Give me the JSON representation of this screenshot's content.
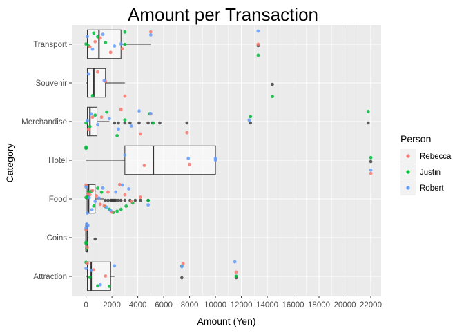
{
  "chart_data": {
    "type": "boxplot-with-jittered-points",
    "title": "Amount per Transaction",
    "xlabel": "Amount (Yen)",
    "ylabel": "Category",
    "xlim": [
      -1100,
      22800
    ],
    "x_ticks": [
      0,
      2000,
      4000,
      6000,
      8000,
      10000,
      12000,
      14000,
      16000,
      18000,
      20000,
      22000
    ],
    "x_tick_labels": [
      "0",
      "2000",
      "4000",
      "6000",
      "8000",
      "10000",
      "12000",
      "14000",
      "16000",
      "18000",
      "20000",
      "22000"
    ],
    "categories": [
      "Attraction",
      "Coins",
      "Food",
      "Hotel",
      "Merchandise",
      "Souvenir",
      "Transport"
    ],
    "legend": {
      "title": "Person",
      "position": "right",
      "entries": [
        {
          "name": "Rebecca",
          "color": "#F8766D"
        },
        {
          "name": "Justin",
          "color": "#00BA38"
        },
        {
          "name": "Robert",
          "color": "#619CFF"
        }
      ]
    },
    "grid": true,
    "colors": {
      "panel": "#EBEBEB",
      "grid": "#FFFFFF",
      "box_fill": "#FFFFFF",
      "outlier": "#333333"
    },
    "boxes": [
      {
        "category": "Attraction",
        "min": 0,
        "q1": 100,
        "median": 400,
        "q3": 1900,
        "max": 2200,
        "outliers": [
          7400,
          11600
        ]
      },
      {
        "category": "Coins",
        "min": 0,
        "q1": 0,
        "median": 0,
        "q3": 100,
        "max": 200,
        "outliers": [
          700
        ]
      },
      {
        "category": "Food",
        "min": 0,
        "q1": 80,
        "median": 200,
        "q3": 700,
        "max": 1400,
        "outliers": [
          1500,
          1700,
          1900,
          2000,
          2100,
          2200,
          2300,
          2500,
          2700,
          3000,
          3400,
          3800,
          4200,
          4800
        ]
      },
      {
        "category": "Hotel",
        "min": 0,
        "q1": 3000,
        "median": 5200,
        "q3": 10000,
        "max": 10000,
        "outliers": [
          22000
        ]
      },
      {
        "category": "Merchandise",
        "min": 0,
        "q1": 100,
        "median": 300,
        "q3": 850,
        "max": 1800,
        "outliers": [
          2200,
          2500,
          3000,
          3400,
          4100,
          4800,
          5100,
          5700,
          7800,
          12700,
          21800
        ]
      },
      {
        "category": "Souvenir",
        "min": 0,
        "q1": 100,
        "median": 600,
        "q3": 1500,
        "max": 3000,
        "outliers": [
          14400
        ]
      },
      {
        "category": "Transport",
        "min": 0,
        "q1": 100,
        "median": 1000,
        "q3": 2700,
        "max": 5000,
        "outliers": [
          13300
        ]
      }
    ],
    "points": [
      {
        "category": "Transport",
        "person": "Justin",
        "values": [
          0,
          200,
          600,
          900,
          1500,
          3000,
          3000,
          13300
        ]
      },
      {
        "category": "Transport",
        "person": "Rebecca",
        "values": [
          300,
          700,
          1100,
          1900,
          2800,
          5000,
          13300
        ]
      },
      {
        "category": "Transport",
        "person": "Robert",
        "values": [
          100,
          500,
          1300,
          2200,
          2700,
          5000,
          13300
        ]
      },
      {
        "category": "Souvenir",
        "person": "Justin",
        "values": [
          500,
          14400
        ]
      },
      {
        "category": "Souvenir",
        "person": "Rebecca",
        "values": [
          900,
          1500,
          3000
        ]
      },
      {
        "category": "Souvenir",
        "person": "Robert",
        "values": [
          200,
          1400
        ]
      },
      {
        "category": "Merchandise",
        "person": "Justin",
        "values": [
          0,
          300,
          700,
          1600,
          2400,
          3000,
          4900,
          5200,
          12700,
          21800
        ]
      },
      {
        "category": "Merchandise",
        "person": "Rebecca",
        "values": [
          200,
          500,
          1200,
          2700,
          4200,
          5000,
          7800
        ]
      },
      {
        "category": "Merchandise",
        "person": "Robert",
        "values": [
          100,
          400,
          900,
          1800,
          2500,
          3500,
          4100,
          5000,
          12600
        ]
      },
      {
        "category": "Hotel",
        "person": "Justin",
        "values": [
          0,
          0,
          22000
        ]
      },
      {
        "category": "Hotel",
        "person": "Rebecca",
        "values": [
          4500,
          8000,
          22000
        ]
      },
      {
        "category": "Hotel",
        "person": "Robert",
        "values": [
          3000,
          7900,
          10000,
          10000,
          22000
        ]
      },
      {
        "category": "Food",
        "person": "Justin",
        "values": [
          0,
          100,
          200,
          400,
          600,
          900,
          1200,
          1500,
          1800,
          2100,
          2400,
          2700,
          3100,
          3600,
          4800
        ]
      },
      {
        "category": "Food",
        "person": "Rebecca",
        "values": [
          0,
          150,
          300,
          500,
          800,
          1100,
          1400,
          1700,
          2000,
          2600,
          3000,
          3500,
          4200
        ]
      },
      {
        "category": "Food",
        "person": "Robert",
        "values": [
          0,
          100,
          250,
          450,
          700,
          1000,
          1300,
          1600,
          1900,
          2300,
          2800,
          3300,
          4800
        ]
      },
      {
        "category": "Coins",
        "person": "Justin",
        "values": [
          0,
          0,
          50
        ]
      },
      {
        "category": "Coins",
        "person": "Rebecca",
        "values": [
          0,
          100
        ]
      },
      {
        "category": "Coins",
        "person": "Robert",
        "values": [
          0,
          50,
          150
        ]
      },
      {
        "category": "Attraction",
        "person": "Justin",
        "values": [
          0,
          300,
          900,
          1800,
          7400,
          11600
        ]
      },
      {
        "category": "Attraction",
        "person": "Rebecca",
        "values": [
          100,
          600,
          1500,
          7500,
          11600
        ]
      },
      {
        "category": "Attraction",
        "person": "Robert",
        "values": [
          0,
          400,
          1100,
          2200,
          7400,
          11500
        ]
      }
    ]
  }
}
